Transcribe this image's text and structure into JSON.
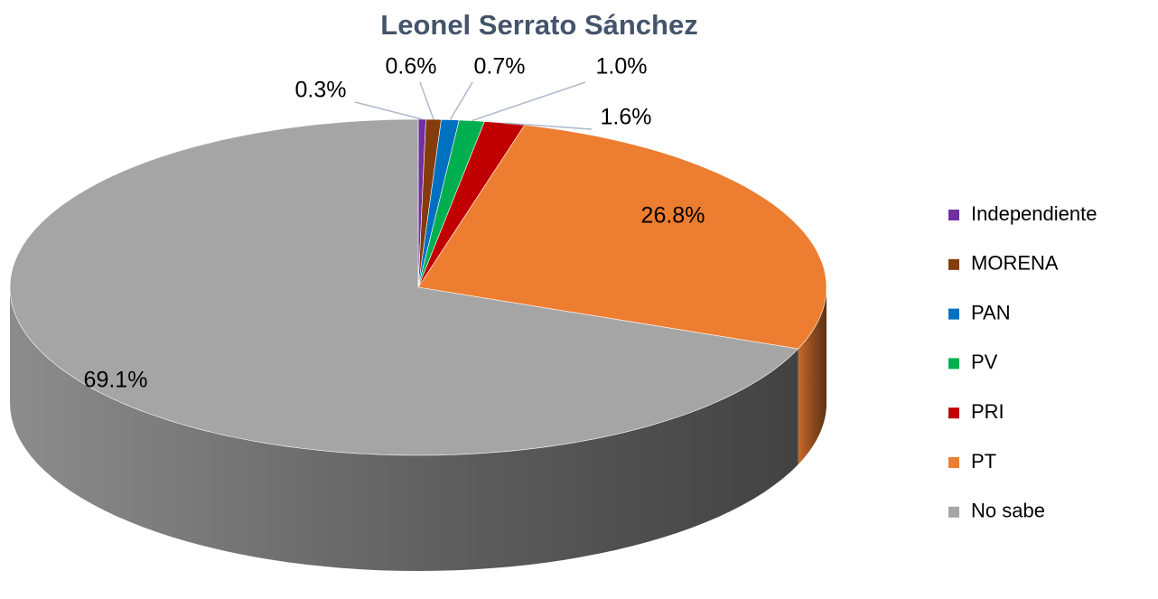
{
  "chart_data": {
    "type": "pie",
    "title": "Leonel Serrato Sánchez",
    "categories": [
      "Independiente",
      "MORENA",
      "PAN",
      "PV",
      "PRI",
      "PT",
      "No sabe"
    ],
    "values": [
      0.3,
      0.6,
      0.7,
      1.0,
      1.6,
      26.8,
      69.1
    ],
    "value_labels": [
      "0.3%",
      "0.6%",
      "0.7%",
      "1.0%",
      "1.6%",
      "26.8%",
      "69.1%"
    ],
    "colors": [
      "#7030a0",
      "#843c0c",
      "#0070c0",
      "#00b050",
      "#c00000",
      "#ed7d31",
      "#a5a5a5"
    ],
    "legend": "right"
  }
}
